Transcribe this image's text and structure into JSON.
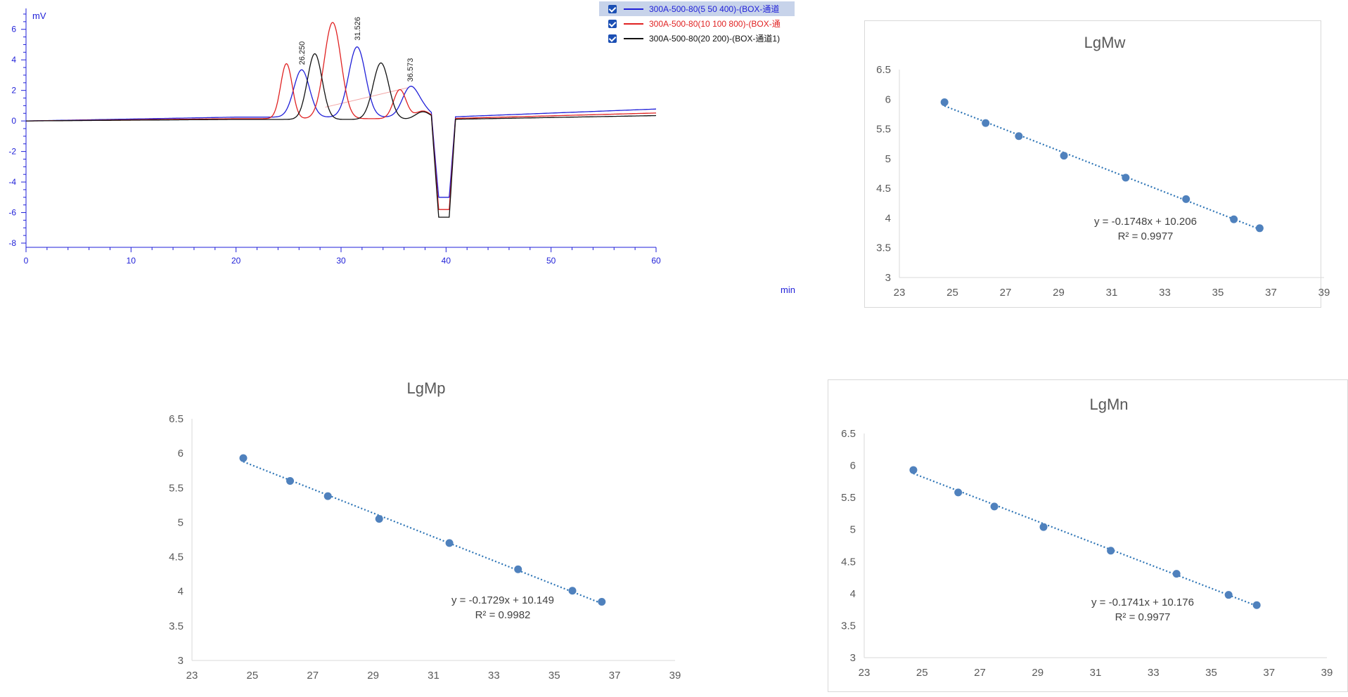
{
  "chart_data": [
    {
      "type": "line",
      "ylabel": "mV",
      "xlabel": "min",
      "xlim": [
        0,
        60
      ],
      "ylim": [
        -8,
        7
      ],
      "x_ticks": [
        0,
        10,
        20,
        30,
        40,
        50,
        60
      ],
      "y_ticks": [
        -8,
        -6,
        -4,
        -2,
        0,
        2,
        4,
        6
      ],
      "axis_color": "#1f1fd8",
      "peak_labels": [
        {
          "label": "26.250",
          "x": 26.25,
          "y": 3.3
        },
        {
          "label": "31.526",
          "x": 31.526,
          "y": 4.9
        },
        {
          "label": "36.573",
          "x": 36.573,
          "y": 2.2
        }
      ],
      "series": [
        {
          "name": "300A-500-80(5 50 400)-(BOX-通道",
          "color": "#1f1fd8",
          "baseline": 0.25,
          "end": 0.78,
          "trough": -5.0,
          "peaks": [
            [
              26.25,
              3.1,
              0.75
            ],
            [
              31.526,
              4.6,
              0.8
            ],
            [
              36.573,
              1.9,
              0.75
            ]
          ]
        },
        {
          "name": "300A-500-80(10 100 800)-(BOX-通",
          "color": "#e02222",
          "baseline": 0.15,
          "end": 0.52,
          "trough": -5.8,
          "peaks": [
            [
              24.8,
              3.6,
              0.55
            ],
            [
              29.2,
              6.3,
              0.8
            ],
            [
              35.6,
              1.9,
              0.6
            ]
          ]
        },
        {
          "name": "300A-500-80(20 200)-(BOX-通道1)",
          "color": "#111111",
          "baseline": 0.1,
          "end": 0.35,
          "trough": -6.3,
          "peaks": [
            [
              27.5,
              4.3,
              0.7
            ],
            [
              33.8,
              3.7,
              0.75
            ]
          ]
        }
      ]
    },
    {
      "type": "scatter",
      "title": "LgMw",
      "xlim": [
        23,
        39
      ],
      "ylim": [
        3,
        6.5
      ],
      "x_ticks": [
        23,
        25,
        27,
        29,
        31,
        33,
        35,
        37,
        39
      ],
      "y_ticks": [
        "3",
        "3.5",
        "4",
        "4.5",
        "5",
        "5.5",
        "6",
        "6.5"
      ],
      "points": [
        [
          24.7,
          5.95
        ],
        [
          26.25,
          5.6
        ],
        [
          27.5,
          5.38
        ],
        [
          29.2,
          5.05
        ],
        [
          31.526,
          4.68
        ],
        [
          33.8,
          4.32
        ],
        [
          35.6,
          3.98
        ],
        [
          36.573,
          3.83
        ]
      ],
      "trendline": {
        "slope": -0.1748,
        "intercept": 10.206,
        "color": "#2e75b6"
      },
      "equation": "y = -0.1748x + 10.206",
      "r2": "R² = 0.9977",
      "point_color": "#4f81bd"
    },
    {
      "type": "scatter",
      "title": "LgMp",
      "xlim": [
        23,
        39
      ],
      "ylim": [
        3,
        6.5
      ],
      "x_ticks": [
        23,
        25,
        27,
        29,
        31,
        33,
        35,
        37,
        39
      ],
      "y_ticks": [
        "3",
        "3.5",
        "4",
        "4.5",
        "5",
        "5.5",
        "6",
        "6.5"
      ],
      "points": [
        [
          24.7,
          5.93
        ],
        [
          26.25,
          5.6
        ],
        [
          27.5,
          5.38
        ],
        [
          29.2,
          5.05
        ],
        [
          31.526,
          4.7
        ],
        [
          33.8,
          4.32
        ],
        [
          35.6,
          4.01
        ],
        [
          36.573,
          3.85
        ]
      ],
      "trendline": {
        "slope": -0.1729,
        "intercept": 10.149,
        "color": "#2e75b6"
      },
      "equation": "y = -0.1729x + 10.149",
      "r2": "R² = 0.9982",
      "point_color": "#4f81bd"
    },
    {
      "type": "scatter",
      "title": "LgMn",
      "xlim": [
        23,
        39
      ],
      "ylim": [
        3,
        6.5
      ],
      "x_ticks": [
        23,
        25,
        27,
        29,
        31,
        33,
        35,
        37,
        39
      ],
      "y_ticks": [
        "3",
        "3.5",
        "4",
        "4.5",
        "5",
        "5.5",
        "6",
        "6.5"
      ],
      "points": [
        [
          24.7,
          5.93
        ],
        [
          26.25,
          5.58
        ],
        [
          27.5,
          5.36
        ],
        [
          29.2,
          5.04
        ],
        [
          31.526,
          4.67
        ],
        [
          33.8,
          4.31
        ],
        [
          35.6,
          3.98
        ],
        [
          36.573,
          3.82
        ]
      ],
      "trendline": {
        "slope": -0.1741,
        "intercept": 10.176,
        "color": "#2e75b6"
      },
      "equation": "y = -0.1741x + 10.176",
      "r2": "R² = 0.9977",
      "point_color": "#4f81bd"
    }
  ]
}
